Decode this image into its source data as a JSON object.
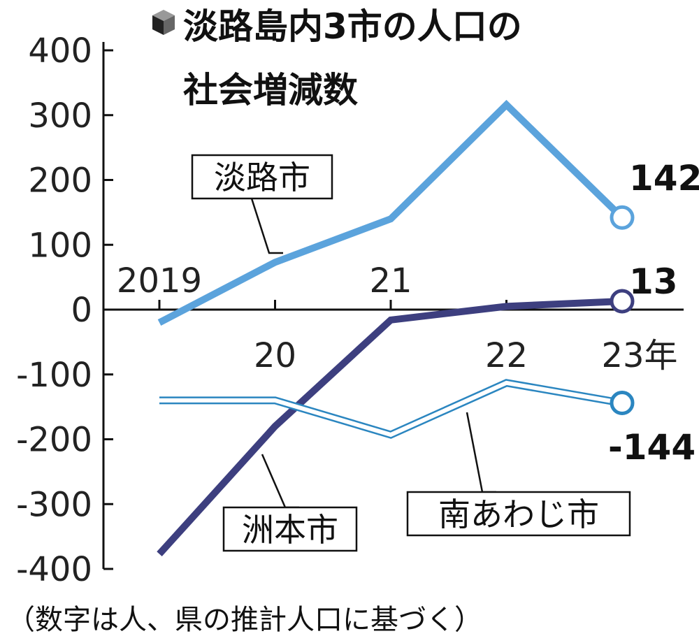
{
  "chart_data": {
    "type": "line",
    "title_line1": "淡路島内3市の人口の",
    "title_line2": "社会増減数",
    "note": "（数字は人、県の推計人口に基づく）",
    "x": [
      2019,
      2020,
      2021,
      2022,
      2023
    ],
    "x_tick_labels": [
      "2019",
      "20",
      "21",
      "22",
      "23年"
    ],
    "ylim": [
      -400,
      400
    ],
    "y_ticks": [
      400,
      300,
      200,
      100,
      0,
      -100,
      -200,
      -300,
      -400
    ],
    "y_tick_labels": [
      "400",
      "300",
      "200",
      "100",
      "0",
      "-100",
      "-200",
      "-300",
      "-400"
    ],
    "series": [
      {
        "name": "淡路市",
        "values": [
          -20,
          73,
          140,
          316,
          142
        ],
        "end_label": "142",
        "color": "#5ba3dc",
        "style": "thick"
      },
      {
        "name": "洲本市",
        "values": [
          -377,
          -180,
          -16,
          5,
          13
        ],
        "end_label": "13",
        "color": "#3d3f7f",
        "style": "thick"
      },
      {
        "name": "南あわじ市",
        "values": [
          -140,
          -140,
          -193,
          -113,
          -144
        ],
        "end_label": "-144",
        "color": "#2b86c0",
        "style": "double"
      }
    ]
  }
}
